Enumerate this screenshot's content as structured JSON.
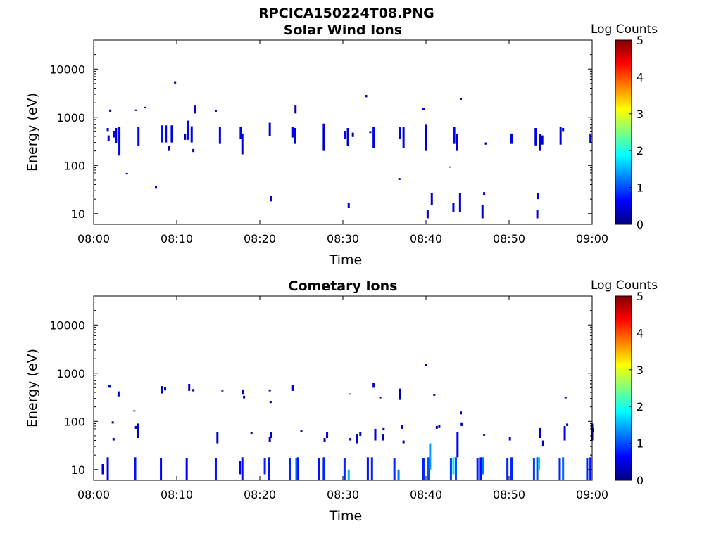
{
  "figure_title": "RPCICA150224T08.PNG",
  "colors": {
    "background": "#ffffff",
    "axis": "#000000",
    "colormap": [
      "#00007f",
      "#0000ff",
      "#007fff",
      "#00ffff",
      "#7fff7f",
      "#ffff00",
      "#ff7f00",
      "#ff0000",
      "#7f0000"
    ]
  },
  "chart_data": [
    {
      "type": "heatmap",
      "title": "Solar Wind Ions",
      "xlabel": "Time",
      "ylabel": "Energy (eV)",
      "y_scale": "log",
      "x_range": [
        "08:00",
        "09:00"
      ],
      "ylim": [
        6,
        40000
      ],
      "x_ticks": [
        "08:00",
        "08:10",
        "08:20",
        "08:30",
        "08:40",
        "08:50",
        "09:00"
      ],
      "y_ticks": [
        "10",
        "100",
        "1000",
        "10000"
      ],
      "colorbar": {
        "label": "Log Counts",
        "ticks": [
          "0",
          "1",
          "2",
          "3",
          "4",
          "5"
        ],
        "range": [
          0,
          5
        ]
      },
      "cells_note": "each cell: [time (minutes after 08:00), energy low (eV), energy high (eV), log counts]",
      "cells": [
        [
          1.7,
          500,
          600,
          0.5
        ],
        [
          1.8,
          320,
          420,
          0.4
        ],
        [
          2.0,
          1300,
          1450,
          0.3
        ],
        [
          2.5,
          380,
          520,
          0.6
        ],
        [
          2.7,
          290,
          600,
          0.5
        ],
        [
          3.1,
          160,
          640,
          0.5
        ],
        [
          4.0,
          65,
          70,
          0.3
        ],
        [
          5.1,
          1350,
          1450,
          0.3
        ],
        [
          5.4,
          250,
          640,
          0.5
        ],
        [
          6.2,
          1550,
          1650,
          0.3
        ],
        [
          7.5,
          33,
          38,
          0.4
        ],
        [
          8.2,
          300,
          680,
          0.7
        ],
        [
          8.7,
          300,
          680,
          0.6
        ],
        [
          9.1,
          200,
          250,
          0.3
        ],
        [
          9.4,
          300,
          680,
          0.5
        ],
        [
          9.8,
          5000,
          5600,
          0.3
        ],
        [
          11.0,
          340,
          450,
          0.4
        ],
        [
          11.4,
          340,
          850,
          0.5
        ],
        [
          11.8,
          300,
          650,
          0.5
        ],
        [
          12.0,
          190,
          220,
          0.3
        ],
        [
          12.2,
          1200,
          1750,
          0.4
        ],
        [
          14.7,
          1300,
          1400,
          0.3
        ],
        [
          15.2,
          280,
          640,
          0.5
        ],
        [
          17.7,
          350,
          640,
          0.6
        ],
        [
          17.9,
          170,
          460,
          0.4
        ],
        [
          21.2,
          400,
          770,
          0.4
        ],
        [
          21.4,
          18,
          23,
          0.4
        ],
        [
          24.0,
          380,
          640,
          0.6
        ],
        [
          24.2,
          280,
          600,
          0.5
        ],
        [
          24.3,
          1200,
          1750,
          0.3
        ],
        [
          27.7,
          200,
          740,
          0.4
        ],
        [
          30.3,
          350,
          520,
          0.5
        ],
        [
          30.6,
          250,
          600,
          0.4
        ],
        [
          30.7,
          13,
          17,
          0.4
        ],
        [
          31.2,
          390,
          480,
          0.3
        ],
        [
          32.8,
          2600,
          2900,
          0.3
        ],
        [
          33.3,
          470,
          500,
          0.3
        ],
        [
          33.7,
          230,
          640,
          0.5
        ],
        [
          36.8,
          50,
          55,
          0.3
        ],
        [
          36.9,
          350,
          640,
          0.5
        ],
        [
          37.3,
          230,
          640,
          0.5
        ],
        [
          39.7,
          1400,
          1550,
          0.3
        ],
        [
          40.0,
          200,
          700,
          0.4
        ],
        [
          40.2,
          8,
          12,
          0.4
        ],
        [
          40.7,
          15,
          27,
          0.4
        ],
        [
          42.9,
          90,
          95,
          0.3
        ],
        [
          43.4,
          280,
          640,
          0.6
        ],
        [
          43.3,
          11,
          17,
          0.4
        ],
        [
          43.7,
          200,
          450,
          0.4
        ],
        [
          44.2,
          2300,
          2500,
          0.3
        ],
        [
          44.1,
          11,
          27,
          0.4
        ],
        [
          46.8,
          8,
          15,
          0.4
        ],
        [
          47.0,
          24,
          28,
          0.3
        ],
        [
          47.2,
          270,
          300,
          0.3
        ],
        [
          50.3,
          280,
          460,
          0.5
        ],
        [
          53.2,
          260,
          600,
          0.5
        ],
        [
          53.4,
          8,
          12,
          0.4
        ],
        [
          53.5,
          20,
          27,
          0.4
        ],
        [
          53.7,
          200,
          450,
          0.4
        ],
        [
          54.0,
          270,
          420,
          0.4
        ],
        [
          56.2,
          270,
          640,
          0.5
        ],
        [
          56.5,
          500,
          600,
          0.3
        ],
        [
          59.8,
          290,
          460,
          0.5
        ]
      ]
    },
    {
      "type": "heatmap",
      "title": "Cometary Ions",
      "xlabel": "Time",
      "ylabel": "Energy (eV)",
      "y_scale": "log",
      "x_range": [
        "08:00",
        "09:00"
      ],
      "ylim": [
        6,
        40000
      ],
      "x_ticks": [
        "08:00",
        "08:10",
        "08:20",
        "08:30",
        "08:40",
        "08:50",
        "09:00"
      ],
      "y_ticks": [
        "10",
        "100",
        "1000",
        "10000"
      ],
      "colorbar": {
        "label": "Log Counts",
        "ticks": [
          "0",
          "1",
          "2",
          "3",
          "4",
          "5"
        ],
        "range": [
          0,
          5
        ]
      },
      "cells_note": "each cell: [time (minutes after 08:00), energy low (eV), energy high (eV), log counts]",
      "cells": [
        [
          1.1,
          8,
          13,
          0.4
        ],
        [
          1.7,
          6,
          18,
          0.6
        ],
        [
          1.9,
          500,
          560,
          0.3
        ],
        [
          2.3,
          90,
          100,
          0.3
        ],
        [
          2.4,
          40,
          45,
          0.3
        ],
        [
          3.0,
          330,
          420,
          0.3
        ],
        [
          4.9,
          160,
          170,
          0.3
        ],
        [
          5.0,
          6,
          18,
          0.7
        ],
        [
          5.1,
          70,
          80,
          0.3
        ],
        [
          5.3,
          45,
          90,
          0.3
        ],
        [
          8.1,
          6,
          17,
          0.6
        ],
        [
          8.2,
          380,
          540,
          0.4
        ],
        [
          8.6,
          440,
          520,
          0.3
        ],
        [
          11.2,
          6,
          17,
          0.6
        ],
        [
          11.5,
          430,
          600,
          0.4
        ],
        [
          12.0,
          420,
          470,
          0.3
        ],
        [
          14.7,
          6,
          17,
          0.7
        ],
        [
          14.9,
          35,
          60,
          0.4
        ],
        [
          15.5,
          420,
          440,
          0.3
        ],
        [
          17.6,
          8,
          15,
          0.6
        ],
        [
          17.9,
          6,
          18,
          0.7
        ],
        [
          18.0,
          360,
          460,
          0.3
        ],
        [
          18.1,
          300,
          340,
          0.3
        ],
        [
          19.0,
          55,
          60,
          0.3
        ],
        [
          20.6,
          8,
          17,
          0.8
        ],
        [
          21.1,
          6,
          18,
          0.7
        ],
        [
          21.3,
          240,
          260,
          0.3
        ],
        [
          21.2,
          420,
          460,
          0.3
        ],
        [
          21.4,
          45,
          60,
          0.3
        ],
        [
          21.2,
          38,
          48,
          0.3
        ],
        [
          23.6,
          6,
          17,
          0.8
        ],
        [
          24.0,
          430,
          560,
          0.4
        ],
        [
          24.4,
          6,
          17,
          1.2
        ],
        [
          24.6,
          6,
          18,
          0.7
        ],
        [
          25.0,
          60,
          65,
          0.3
        ],
        [
          27.1,
          6,
          17,
          0.7
        ],
        [
          27.7,
          6,
          18,
          0.8
        ],
        [
          28.1,
          45,
          60,
          0.3
        ],
        [
          27.8,
          38,
          45,
          0.3
        ],
        [
          30.2,
          6,
          17,
          0.8
        ],
        [
          30.7,
          6,
          10,
          1.5
        ],
        [
          30.8,
          360,
          380,
          0.3
        ],
        [
          30.9,
          40,
          45,
          0.3
        ],
        [
          31.7,
          35,
          55,
          0.4
        ],
        [
          32.1,
          50,
          60,
          0.3
        ],
        [
          33.0,
          6,
          18,
          0.7
        ],
        [
          33.5,
          6,
          18,
          0.8
        ],
        [
          33.7,
          500,
          640,
          0.3
        ],
        [
          33.9,
          40,
          70,
          0.4
        ],
        [
          34.5,
          300,
          320,
          0.3
        ],
        [
          34.8,
          40,
          55,
          0.3
        ],
        [
          34.9,
          65,
          75,
          0.3
        ],
        [
          36.2,
          6,
          17,
          0.8
        ],
        [
          36.7,
          6,
          10,
          1.2
        ],
        [
          36.9,
          280,
          480,
          0.3
        ],
        [
          37.1,
          70,
          85,
          0.3
        ],
        [
          37.3,
          35,
          40,
          0.3
        ],
        [
          39.7,
          6,
          17,
          0.8
        ],
        [
          40.0,
          1400,
          1550,
          0.3
        ],
        [
          40.3,
          6,
          18,
          1.0
        ],
        [
          40.5,
          10,
          35,
          1.4
        ],
        [
          41.0,
          340,
          370,
          0.3
        ],
        [
          41.3,
          70,
          80,
          0.3
        ],
        [
          41.6,
          75,
          85,
          0.3
        ],
        [
          43.0,
          6,
          17,
          0.9
        ],
        [
          43.3,
          8,
          18,
          1.8
        ],
        [
          43.6,
          6,
          18,
          1.0
        ],
        [
          43.8,
          18,
          60,
          0.5
        ],
        [
          44.2,
          140,
          160,
          0.3
        ],
        [
          44.3,
          80,
          95,
          0.3
        ],
        [
          46.2,
          6,
          17,
          0.8
        ],
        [
          46.6,
          6,
          18,
          0.7
        ],
        [
          46.9,
          8,
          18,
          1.2
        ],
        [
          47.0,
          50,
          55,
          0.3
        ],
        [
          49.8,
          6,
          17,
          0.8
        ],
        [
          50.1,
          40,
          48,
          0.6
        ],
        [
          50.3,
          6,
          18,
          0.8
        ],
        [
          53.0,
          6,
          17,
          0.9
        ],
        [
          53.4,
          6,
          18,
          1.0
        ],
        [
          53.6,
          10,
          18,
          1.6
        ],
        [
          53.7,
          45,
          75,
          0.4
        ],
        [
          54.1,
          30,
          40,
          0.3
        ],
        [
          56.1,
          6,
          17,
          0.8
        ],
        [
          56.5,
          6,
          18,
          1.1
        ],
        [
          56.7,
          40,
          80,
          0.5
        ],
        [
          56.8,
          300,
          320,
          0.3
        ],
        [
          57.0,
          80,
          90,
          0.3
        ],
        [
          59.4,
          6,
          17,
          0.8
        ],
        [
          59.8,
          6,
          18,
          0.7
        ],
        [
          60.0,
          40,
          90,
          0.4
        ],
        [
          60.1,
          60,
          75,
          0.3
        ]
      ]
    }
  ]
}
